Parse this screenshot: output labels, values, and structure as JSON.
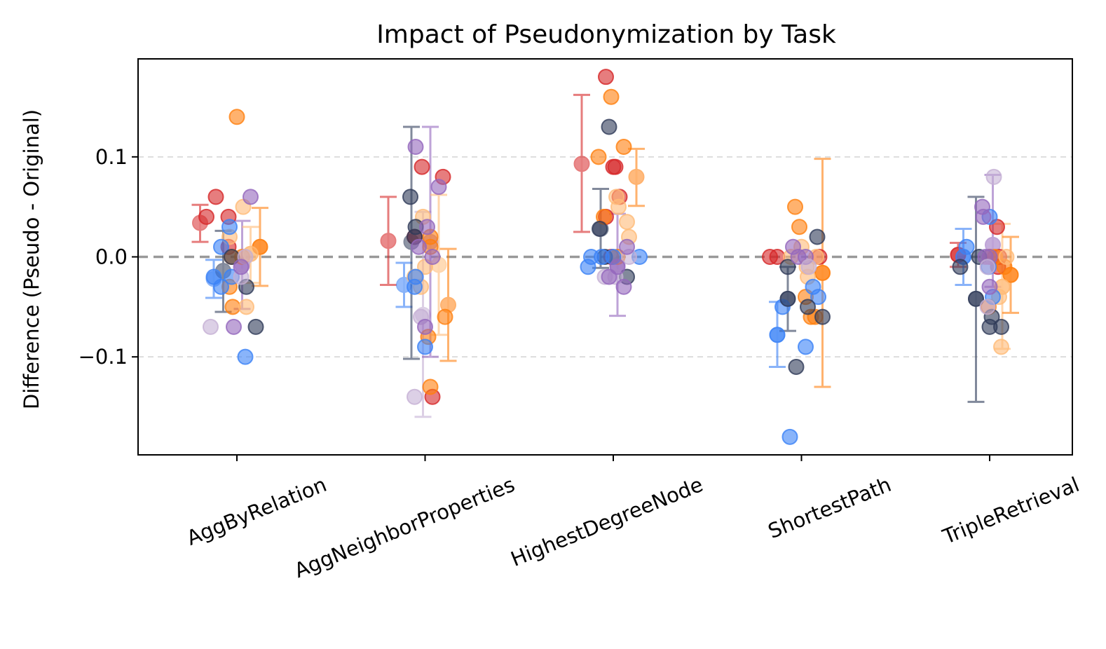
{
  "chart_data": {
    "type": "scatter",
    "title": "Impact of Pseudonymization by Task",
    "xlabel": "",
    "ylabel": "Difference (Pseudo - Original)",
    "ylim": [
      -0.198,
      0.198
    ],
    "yticks": [
      -0.1,
      0.0,
      0.1
    ],
    "ytick_labels": [
      "−0.1",
      "0.0",
      "0.1"
    ],
    "grid": "horizontal dashed",
    "reference_line": 0.0,
    "categories": [
      "AggByRelation",
      "AggNeighborProperties",
      "HighestDegreeNode",
      "ShortestPath",
      "TripleRetrieval"
    ],
    "colors": {
      "red": "#d62728",
      "orange": "#ff7f0e",
      "lightorange": "#ffbb78",
      "blue": "#3b82f6",
      "navy": "#2f3b59",
      "purple": "#9467bd",
      "lavender": "#c5b0d5"
    },
    "errorbars": [
      {
        "color": "red",
        "x": -0.35,
        "mean": 0.034,
        "low": 0.015,
        "high": 0.052
      },
      {
        "color": "blue",
        "x": -0.22,
        "mean": -0.022,
        "low": -0.041,
        "high": -0.003
      },
      {
        "color": "navy",
        "x": -0.13,
        "mean": -0.014,
        "low": -0.055,
        "high": 0.026
      },
      {
        "color": "purple",
        "x": 0.05,
        "mean": -0.008,
        "low": -0.052,
        "high": 0.036
      },
      {
        "color": "lightorange",
        "x": 0.13,
        "mean": 0.003,
        "low": -0.026,
        "high": 0.03
      },
      {
        "color": "orange",
        "x": 0.22,
        "mean": 0.01,
        "low": -0.029,
        "high": 0.049
      },
      {
        "color": "red",
        "x": -0.35,
        "mean": 0.016,
        "low": -0.028,
        "high": 0.06
      },
      {
        "color": "blue",
        "x": -0.2,
        "mean": -0.028,
        "low": -0.05,
        "high": -0.006
      },
      {
        "color": "navy",
        "x": -0.13,
        "mean": 0.015,
        "low": -0.102,
        "high": 0.13
      },
      {
        "color": "lavender",
        "x": -0.02,
        "mean": -0.058,
        "low": -0.16,
        "high": 0.045
      },
      {
        "color": "purple",
        "x": 0.05,
        "mean": 0.015,
        "low": -0.1,
        "high": 0.13
      },
      {
        "color": "lightorange",
        "x": 0.13,
        "mean": -0.008,
        "low": -0.078,
        "high": 0.062
      },
      {
        "color": "orange",
        "x": 0.22,
        "mean": -0.048,
        "low": -0.104,
        "high": 0.008
      },
      {
        "color": "red",
        "x": -0.3,
        "mean": 0.093,
        "low": 0.025,
        "high": 0.162
      },
      {
        "color": "navy",
        "x": -0.12,
        "mean": 0.028,
        "low": -0.011,
        "high": 0.068
      },
      {
        "color": "purple",
        "x": 0.04,
        "mean": -0.008,
        "low": -0.059,
        "high": 0.043
      },
      {
        "color": "orange",
        "x": 0.22,
        "mean": 0.08,
        "low": 0.051,
        "high": 0.108
      },
      {
        "color": "blue",
        "x": -0.23,
        "mean": -0.078,
        "low": -0.11,
        "high": -0.045
      },
      {
        "color": "navy",
        "x": -0.13,
        "mean": -0.042,
        "low": -0.074,
        "high": -0.01
      },
      {
        "color": "orange",
        "x": 0.2,
        "mean": -0.016,
        "low": -0.13,
        "high": 0.098
      },
      {
        "color": "red",
        "x": -0.3,
        "mean": 0.002,
        "low": -0.01,
        "high": 0.014
      },
      {
        "color": "blue",
        "x": -0.25,
        "mean": 0.0,
        "low": -0.028,
        "high": 0.028
      },
      {
        "color": "navy",
        "x": -0.13,
        "mean": -0.042,
        "low": -0.145,
        "high": 0.06
      },
      {
        "color": "purple",
        "x": 0.03,
        "mean": 0.012,
        "low": -0.03,
        "high": 0.082
      },
      {
        "color": "lightorange",
        "x": 0.12,
        "mean": -0.03,
        "low": -0.092,
        "high": 0.033
      },
      {
        "color": "orange",
        "x": 0.2,
        "mean": -0.018,
        "low": -0.056,
        "high": 0.02
      }
    ],
    "points": [
      {
        "cat": 0,
        "dx": -0.29,
        "y": 0.04,
        "color": "red"
      },
      {
        "cat": 0,
        "dx": -0.2,
        "y": 0.06,
        "color": "red"
      },
      {
        "cat": 0,
        "dx": -0.08,
        "y": 0.04,
        "color": "red"
      },
      {
        "cat": 0,
        "dx": -0.08,
        "y": 0.01,
        "color": "red"
      },
      {
        "cat": 0,
        "dx": 0.0,
        "y": 0.14,
        "color": "orange"
      },
      {
        "cat": 0,
        "dx": -0.05,
        "y": 0.0,
        "color": "orange"
      },
      {
        "cat": 0,
        "dx": -0.07,
        "y": -0.03,
        "color": "orange"
      },
      {
        "cat": 0,
        "dx": -0.04,
        "y": -0.05,
        "color": "orange"
      },
      {
        "cat": 0,
        "dx": 0.05,
        "y": 0.0,
        "color": "orange"
      },
      {
        "cat": 0,
        "dx": 0.22,
        "y": 0.01,
        "color": "orange"
      },
      {
        "cat": 0,
        "dx": -0.07,
        "y": 0.02,
        "color": "lightorange"
      },
      {
        "cat": 0,
        "dx": 0.06,
        "y": 0.05,
        "color": "lightorange"
      },
      {
        "cat": 0,
        "dx": 0.09,
        "y": -0.05,
        "color": "lightorange"
      },
      {
        "cat": 0,
        "dx": 0.13,
        "y": 0.003,
        "color": "lightorange"
      },
      {
        "cat": 0,
        "dx": -0.22,
        "y": -0.02,
        "color": "blue"
      },
      {
        "cat": 0,
        "dx": -0.15,
        "y": -0.03,
        "color": "blue"
      },
      {
        "cat": 0,
        "dx": -0.15,
        "y": 0.01,
        "color": "blue"
      },
      {
        "cat": 0,
        "dx": -0.07,
        "y": 0.03,
        "color": "blue"
      },
      {
        "cat": 0,
        "dx": -0.05,
        "y": -0.02,
        "color": "blue"
      },
      {
        "cat": 0,
        "dx": 0.08,
        "y": -0.1,
        "color": "blue"
      },
      {
        "cat": 0,
        "dx": -0.05,
        "y": 0.0,
        "color": "navy"
      },
      {
        "cat": 0,
        "dx": 0.09,
        "y": -0.03,
        "color": "navy"
      },
      {
        "cat": 0,
        "dx": 0.18,
        "y": -0.07,
        "color": "navy"
      },
      {
        "cat": 0,
        "dx": -0.25,
        "y": -0.07,
        "color": "lavender"
      },
      {
        "cat": 0,
        "dx": 0.04,
        "y": -0.02,
        "color": "lavender"
      },
      {
        "cat": 0,
        "dx": 0.08,
        "y": 0.0,
        "color": "lavender"
      },
      {
        "cat": 0,
        "dx": -0.03,
        "y": -0.07,
        "color": "purple"
      },
      {
        "cat": 0,
        "dx": 0.04,
        "y": -0.01,
        "color": "purple"
      },
      {
        "cat": 0,
        "dx": 0.13,
        "y": 0.06,
        "color": "purple"
      },
      {
        "cat": 1,
        "dx": -0.03,
        "y": 0.09,
        "color": "red"
      },
      {
        "cat": 1,
        "dx": 0.17,
        "y": 0.08,
        "color": "red"
      },
      {
        "cat": 1,
        "dx": -0.1,
        "y": 0.02,
        "color": "red"
      },
      {
        "cat": 1,
        "dx": 0.07,
        "y": -0.14,
        "color": "red"
      },
      {
        "cat": 1,
        "dx": 0.05,
        "y": -0.13,
        "color": "orange"
      },
      {
        "cat": 1,
        "dx": 0.03,
        "y": -0.08,
        "color": "orange"
      },
      {
        "cat": 1,
        "dx": 0.19,
        "y": -0.06,
        "color": "orange"
      },
      {
        "cat": 1,
        "dx": 0.05,
        "y": 0.01,
        "color": "orange"
      },
      {
        "cat": 1,
        "dx": 0.05,
        "y": 0.02,
        "color": "orange"
      },
      {
        "cat": 1,
        "dx": -0.02,
        "y": 0.04,
        "color": "lightorange"
      },
      {
        "cat": 1,
        "dx": -0.1,
        "y": -0.02,
        "color": "lightorange"
      },
      {
        "cat": 1,
        "dx": -0.04,
        "y": -0.03,
        "color": "lightorange"
      },
      {
        "cat": 1,
        "dx": 0.0,
        "y": -0.01,
        "color": "lightorange"
      },
      {
        "cat": 1,
        "dx": -0.1,
        "y": -0.03,
        "color": "blue"
      },
      {
        "cat": 1,
        "dx": 0.0,
        "y": -0.09,
        "color": "blue"
      },
      {
        "cat": 1,
        "dx": -0.09,
        "y": -0.02,
        "color": "blue"
      },
      {
        "cat": 1,
        "dx": -0.14,
        "y": 0.06,
        "color": "navy"
      },
      {
        "cat": 1,
        "dx": -0.09,
        "y": 0.03,
        "color": "navy"
      },
      {
        "cat": 1,
        "dx": -0.1,
        "y": 0.02,
        "color": "navy"
      },
      {
        "cat": 1,
        "dx": -0.1,
        "y": -0.14,
        "color": "lavender"
      },
      {
        "cat": 1,
        "dx": -0.04,
        "y": -0.06,
        "color": "lavender"
      },
      {
        "cat": 1,
        "dx": -0.09,
        "y": 0.11,
        "color": "purple"
      },
      {
        "cat": 1,
        "dx": 0.13,
        "y": 0.07,
        "color": "purple"
      },
      {
        "cat": 1,
        "dx": 0.02,
        "y": 0.03,
        "color": "purple"
      },
      {
        "cat": 1,
        "dx": -0.06,
        "y": 0.01,
        "color": "purple"
      },
      {
        "cat": 1,
        "dx": 0.07,
        "y": 0.0,
        "color": "purple"
      },
      {
        "cat": 1,
        "dx": 0.0,
        "y": -0.07,
        "color": "purple"
      },
      {
        "cat": 2,
        "dx": -0.07,
        "y": 0.18,
        "color": "red"
      },
      {
        "cat": 2,
        "dx": 0.0,
        "y": 0.09,
        "color": "red"
      },
      {
        "cat": 2,
        "dx": 0.02,
        "y": 0.09,
        "color": "red"
      },
      {
        "cat": 2,
        "dx": 0.06,
        "y": 0.06,
        "color": "red"
      },
      {
        "cat": 2,
        "dx": -0.07,
        "y": 0.04,
        "color": "red"
      },
      {
        "cat": 2,
        "dx": -0.02,
        "y": 0.0,
        "color": "red"
      },
      {
        "cat": 2,
        "dx": -0.02,
        "y": 0.16,
        "color": "orange"
      },
      {
        "cat": 2,
        "dx": -0.14,
        "y": 0.1,
        "color": "orange"
      },
      {
        "cat": 2,
        "dx": 0.1,
        "y": 0.11,
        "color": "orange"
      },
      {
        "cat": 2,
        "dx": -0.09,
        "y": 0.04,
        "color": "orange"
      },
      {
        "cat": 2,
        "dx": 0.04,
        "y": 0.0,
        "color": "orange"
      },
      {
        "cat": 2,
        "dx": 0.03,
        "y": 0.06,
        "color": "lightorange"
      },
      {
        "cat": 2,
        "dx": 0.05,
        "y": 0.05,
        "color": "lightorange"
      },
      {
        "cat": 2,
        "dx": 0.13,
        "y": 0.035,
        "color": "lightorange"
      },
      {
        "cat": 2,
        "dx": 0.15,
        "y": 0.02,
        "color": "lightorange"
      },
      {
        "cat": 2,
        "dx": -0.04,
        "y": 0.13,
        "color": "navy"
      },
      {
        "cat": 2,
        "dx": -0.13,
        "y": 0.028,
        "color": "navy"
      },
      {
        "cat": 2,
        "dx": -0.08,
        "y": 0.0,
        "color": "navy"
      },
      {
        "cat": 2,
        "dx": 0.13,
        "y": -0.02,
        "color": "navy"
      },
      {
        "cat": 2,
        "dx": -0.24,
        "y": -0.01,
        "color": "blue"
      },
      {
        "cat": 2,
        "dx": -0.21,
        "y": 0.0,
        "color": "blue"
      },
      {
        "cat": 2,
        "dx": -0.11,
        "y": 0.0,
        "color": "blue"
      },
      {
        "cat": 2,
        "dx": 0.0,
        "y": 0.0,
        "color": "blue"
      },
      {
        "cat": 2,
        "dx": 0.25,
        "y": 0.0,
        "color": "blue"
      },
      {
        "cat": 2,
        "dx": 0.02,
        "y": -0.02,
        "color": "lavender"
      },
      {
        "cat": 2,
        "dx": -0.08,
        "y": -0.02,
        "color": "lavender"
      },
      {
        "cat": 2,
        "dx": 0.15,
        "y": 0.0,
        "color": "lavender"
      },
      {
        "cat": 2,
        "dx": -0.04,
        "y": -0.02,
        "color": "purple"
      },
      {
        "cat": 2,
        "dx": 0.04,
        "y": -0.01,
        "color": "purple"
      },
      {
        "cat": 2,
        "dx": 0.13,
        "y": 0.01,
        "color": "purple"
      },
      {
        "cat": 2,
        "dx": 0.1,
        "y": -0.03,
        "color": "purple"
      },
      {
        "cat": 3,
        "dx": -0.3,
        "y": 0.0,
        "color": "red"
      },
      {
        "cat": 3,
        "dx": -0.23,
        "y": 0.0,
        "color": "red"
      },
      {
        "cat": 3,
        "dx": 0.17,
        "y": 0.0,
        "color": "red"
      },
      {
        "cat": 3,
        "dx": -0.06,
        "y": 0.05,
        "color": "orange"
      },
      {
        "cat": 3,
        "dx": -0.02,
        "y": 0.03,
        "color": "orange"
      },
      {
        "cat": 3,
        "dx": 0.04,
        "y": -0.04,
        "color": "orange"
      },
      {
        "cat": 3,
        "dx": 0.09,
        "y": -0.06,
        "color": "orange"
      },
      {
        "cat": 3,
        "dx": 0.13,
        "y": -0.06,
        "color": "orange"
      },
      {
        "cat": 3,
        "dx": 0.2,
        "y": -0.016,
        "color": "orange"
      },
      {
        "cat": 3,
        "dx": -0.1,
        "y": 0.0,
        "color": "lightorange"
      },
      {
        "cat": 3,
        "dx": 0.0,
        "y": 0.01,
        "color": "lightorange"
      },
      {
        "cat": 3,
        "dx": 0.05,
        "y": -0.01,
        "color": "lightorange"
      },
      {
        "cat": 3,
        "dx": 0.06,
        "y": -0.02,
        "color": "lightorange"
      },
      {
        "cat": 3,
        "dx": 0.14,
        "y": 0.0,
        "color": "lightorange"
      },
      {
        "cat": 3,
        "dx": -0.18,
        "y": -0.05,
        "color": "blue"
      },
      {
        "cat": 3,
        "dx": -0.23,
        "y": -0.078,
        "color": "blue"
      },
      {
        "cat": 3,
        "dx": 0.04,
        "y": -0.09,
        "color": "blue"
      },
      {
        "cat": 3,
        "dx": 0.11,
        "y": -0.03,
        "color": "blue"
      },
      {
        "cat": 3,
        "dx": 0.16,
        "y": -0.04,
        "color": "blue"
      },
      {
        "cat": 3,
        "dx": -0.11,
        "y": -0.18,
        "color": "blue"
      },
      {
        "cat": 3,
        "dx": -0.13,
        "y": -0.01,
        "color": "navy"
      },
      {
        "cat": 3,
        "dx": -0.13,
        "y": -0.042,
        "color": "navy"
      },
      {
        "cat": 3,
        "dx": -0.05,
        "y": -0.11,
        "color": "navy"
      },
      {
        "cat": 3,
        "dx": 0.06,
        "y": -0.05,
        "color": "navy"
      },
      {
        "cat": 3,
        "dx": 0.15,
        "y": 0.02,
        "color": "navy"
      },
      {
        "cat": 3,
        "dx": 0.2,
        "y": -0.06,
        "color": "navy"
      },
      {
        "cat": 3,
        "dx": -0.08,
        "y": 0.01,
        "color": "purple"
      },
      {
        "cat": 3,
        "dx": -0.03,
        "y": 0.0,
        "color": "purple"
      },
      {
        "cat": 3,
        "dx": 0.04,
        "y": 0.0,
        "color": "purple"
      },
      {
        "cat": 3,
        "dx": 0.07,
        "y": -0.01,
        "color": "lavender"
      },
      {
        "cat": 4,
        "dx": -0.3,
        "y": 0.002,
        "color": "red"
      },
      {
        "cat": 4,
        "dx": 0.07,
        "y": 0.03,
        "color": "red"
      },
      {
        "cat": 4,
        "dx": 0.09,
        "y": 0.0,
        "color": "red"
      },
      {
        "cat": 4,
        "dx": 0.08,
        "y": -0.01,
        "color": "red"
      },
      {
        "cat": 4,
        "dx": 0.0,
        "y": 0.0,
        "color": "orange"
      },
      {
        "cat": 4,
        "dx": -0.01,
        "y": -0.05,
        "color": "orange"
      },
      {
        "cat": 4,
        "dx": 0.05,
        "y": 0.0,
        "color": "orange"
      },
      {
        "cat": 4,
        "dx": 0.14,
        "y": -0.01,
        "color": "orange"
      },
      {
        "cat": 4,
        "dx": 0.2,
        "y": -0.018,
        "color": "orange"
      },
      {
        "cat": 4,
        "dx": 0.12,
        "y": -0.03,
        "color": "lightorange"
      },
      {
        "cat": 4,
        "dx": 0.11,
        "y": -0.09,
        "color": "lightorange"
      },
      {
        "cat": 4,
        "dx": 0.16,
        "y": 0.0,
        "color": "lightorange"
      },
      {
        "cat": 4,
        "dx": 0.09,
        "y": -0.04,
        "color": "lightorange"
      },
      {
        "cat": 4,
        "dx": -0.22,
        "y": 0.01,
        "color": "blue"
      },
      {
        "cat": 4,
        "dx": -0.25,
        "y": 0.0,
        "color": "blue"
      },
      {
        "cat": 4,
        "dx": 0.0,
        "y": 0.04,
        "color": "blue"
      },
      {
        "cat": 4,
        "dx": -0.01,
        "y": -0.01,
        "color": "blue"
      },
      {
        "cat": 4,
        "dx": 0.03,
        "y": -0.04,
        "color": "blue"
      },
      {
        "cat": 4,
        "dx": -0.28,
        "y": -0.01,
        "color": "navy"
      },
      {
        "cat": 4,
        "dx": -0.13,
        "y": -0.042,
        "color": "navy"
      },
      {
        "cat": 4,
        "dx": -0.1,
        "y": 0.0,
        "color": "navy"
      },
      {
        "cat": 4,
        "dx": 0.0,
        "y": -0.07,
        "color": "navy"
      },
      {
        "cat": 4,
        "dx": 0.02,
        "y": -0.06,
        "color": "navy"
      },
      {
        "cat": 4,
        "dx": 0.11,
        "y": -0.07,
        "color": "navy"
      },
      {
        "cat": 4,
        "dx": -0.07,
        "y": 0.05,
        "color": "purple"
      },
      {
        "cat": 4,
        "dx": -0.06,
        "y": 0.04,
        "color": "purple"
      },
      {
        "cat": 4,
        "dx": -0.04,
        "y": 0.0,
        "color": "purple"
      },
      {
        "cat": 4,
        "dx": 0.0,
        "y": 0.0,
        "color": "purple"
      },
      {
        "cat": 4,
        "dx": 0.0,
        "y": -0.03,
        "color": "purple"
      },
      {
        "cat": 4,
        "dx": 0.04,
        "y": 0.08,
        "color": "lavender"
      },
      {
        "cat": 4,
        "dx": -0.02,
        "y": -0.01,
        "color": "lavender"
      },
      {
        "cat": 4,
        "dx": -0.02,
        "y": -0.05,
        "color": "lavender"
      }
    ]
  }
}
